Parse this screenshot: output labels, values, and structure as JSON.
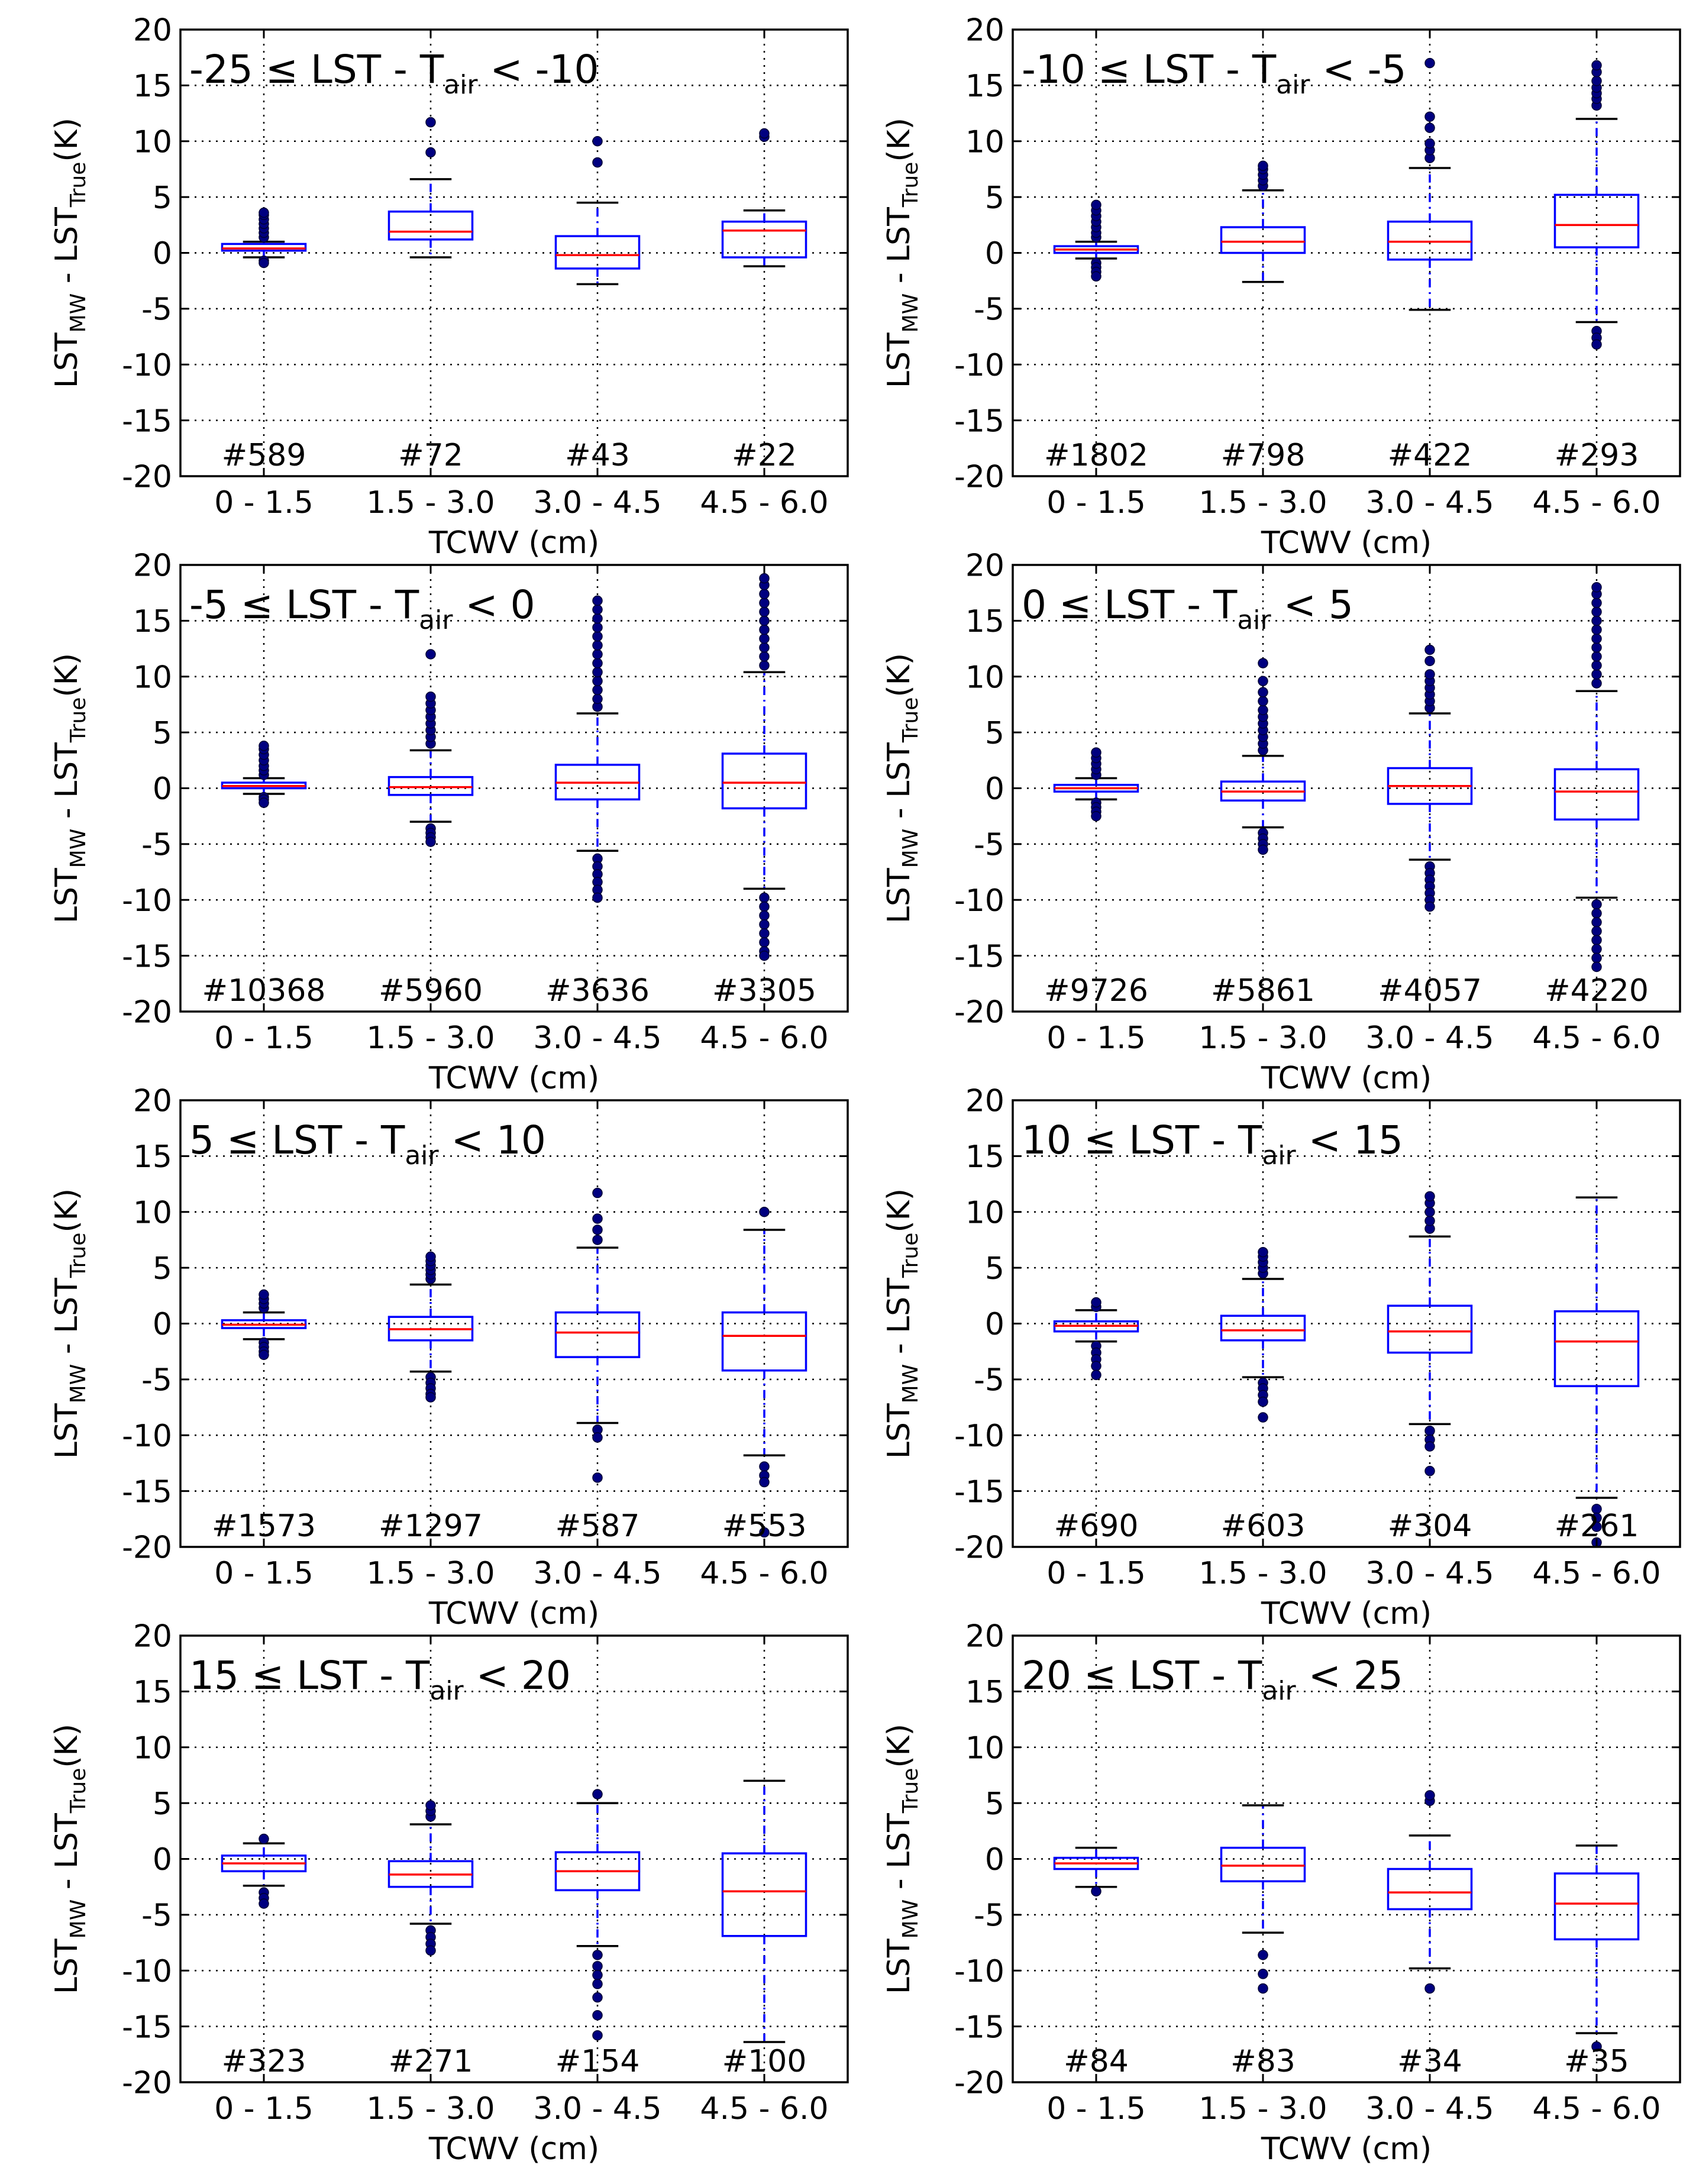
{
  "figure": {
    "xlabel": "TCWV (cm)",
    "ylabel_parts": {
      "a": "LST",
      "sub1": "MW",
      "mid": " - LST",
      "sub2": "True",
      "end": "(K)"
    },
    "colors": {
      "box": "#0000ff",
      "median": "#ff0000",
      "whisker": "#0000ff",
      "cap": "#000000",
      "flier": "#000080",
      "grid": "#000000"
    }
  },
  "chart_data": [
    {
      "type": "box",
      "title_parts": {
        "pre": "-25 ≤ LST - T",
        "sub": "air",
        "post": " < -10"
      },
      "categories": [
        "0 - 1.5",
        "1.5 - 3.0",
        "3.0 - 4.5",
        "4.5 - 6.0"
      ],
      "ylim": [
        -20,
        20
      ],
      "yticks": [
        -20,
        -15,
        -10,
        -5,
        0,
        5,
        10,
        15,
        20
      ],
      "counts": [
        "#589",
        "#72",
        "#43",
        "#22"
      ],
      "boxes": [
        {
          "q1": 0.2,
          "median": 0.4,
          "q3": 0.8,
          "wlo": -0.4,
          "whi": 1.0,
          "fliers": [
            1.4,
            1.8,
            2.2,
            2.6,
            3.0,
            3.4,
            3.6,
            -0.7,
            -0.9
          ]
        },
        {
          "q1": 1.2,
          "median": 1.9,
          "q3": 3.7,
          "wlo": -0.4,
          "whi": 6.6,
          "fliers": [
            9.0,
            11.7
          ]
        },
        {
          "q1": -1.4,
          "median": -0.2,
          "q3": 1.5,
          "wlo": -2.8,
          "whi": 4.5,
          "fliers": [
            8.1,
            10.0
          ]
        },
        {
          "q1": -0.4,
          "median": 2.0,
          "q3": 2.8,
          "wlo": -1.2,
          "whi": 3.8,
          "fliers": [
            10.4,
            10.7
          ]
        }
      ]
    },
    {
      "type": "box",
      "title_parts": {
        "pre": "-10 ≤ LST - T",
        "sub": "air",
        "post": " < -5"
      },
      "categories": [
        "0 - 1.5",
        "1.5 - 3.0",
        "3.0 - 4.5",
        "4.5 - 6.0"
      ],
      "ylim": [
        -20,
        20
      ],
      "yticks": [
        -20,
        -15,
        -10,
        -5,
        0,
        5,
        10,
        15,
        20
      ],
      "counts": [
        "#1802",
        "#798",
        "#422",
        "#293"
      ],
      "boxes": [
        {
          "q1": 0.0,
          "median": 0.3,
          "q3": 0.6,
          "wlo": -0.5,
          "whi": 1.0,
          "fliers": [
            1.4,
            1.8,
            2.3,
            2.8,
            3.3,
            3.8,
            4.3,
            -0.9,
            -1.3,
            -1.7,
            -2.1
          ]
        },
        {
          "q1": 0.0,
          "median": 1.0,
          "q3": 2.3,
          "wlo": -2.6,
          "whi": 5.6,
          "fliers": [
            6.0,
            6.5,
            7.0,
            7.5,
            7.8
          ]
        },
        {
          "q1": -0.6,
          "median": 1.0,
          "q3": 2.8,
          "wlo": -5.1,
          "whi": 7.6,
          "fliers": [
            8.5,
            9.2,
            9.8,
            11.2,
            12.2,
            17.0
          ]
        },
        {
          "q1": 0.5,
          "median": 2.5,
          "q3": 5.2,
          "wlo": -6.2,
          "whi": 12.0,
          "fliers": [
            13.2,
            13.8,
            14.3,
            14.8,
            15.4,
            16.2,
            16.8,
            -7.0,
            -7.6,
            -8.2
          ]
        }
      ]
    },
    {
      "type": "box",
      "title_parts": {
        "pre": "-5 ≤ LST - T",
        "sub": "air",
        "post": " < 0"
      },
      "categories": [
        "0 - 1.5",
        "1.5 - 3.0",
        "3.0 - 4.5",
        "4.5 - 6.0"
      ],
      "ylim": [
        -20,
        20
      ],
      "yticks": [
        -20,
        -15,
        -10,
        -5,
        0,
        5,
        10,
        15,
        20
      ],
      "counts": [
        "#10368",
        "#5960",
        "#3636",
        "#3305"
      ],
      "boxes": [
        {
          "q1": 0.0,
          "median": 0.2,
          "q3": 0.5,
          "wlo": -0.5,
          "whi": 0.9,
          "fliers": [
            1.2,
            1.6,
            2.0,
            2.5,
            3.0,
            3.5,
            3.8,
            -0.8,
            -1.0,
            -1.3
          ]
        },
        {
          "q1": -0.6,
          "median": 0.1,
          "q3": 1.0,
          "wlo": -3.0,
          "whi": 3.4,
          "fliers": [
            4.0,
            4.6,
            5.2,
            5.8,
            6.4,
            7.0,
            7.6,
            8.2,
            12.0,
            -3.6,
            -4.0,
            -4.4,
            -4.8
          ]
        },
        {
          "q1": -1.0,
          "median": 0.5,
          "q3": 2.1,
          "wlo": -5.6,
          "whi": 6.7,
          "fliers": [
            7.3,
            8.0,
            8.8,
            9.6,
            10.4,
            11.2,
            12.0,
            12.8,
            13.6,
            14.4,
            15.2,
            16.0,
            16.8,
            -6.3,
            -7.0,
            -7.7,
            -8.4,
            -9.1,
            -9.8
          ]
        },
        {
          "q1": -1.8,
          "median": 0.5,
          "q3": 3.1,
          "wlo": -9.0,
          "whi": 10.4,
          "fliers": [
            11.0,
            11.8,
            12.6,
            13.4,
            14.2,
            15.0,
            15.8,
            16.6,
            17.4,
            18.2,
            18.8,
            -9.8,
            -10.6,
            -11.4,
            -12.2,
            -13.0,
            -13.8,
            -14.6,
            -15.0
          ]
        }
      ]
    },
    {
      "type": "box",
      "title_parts": {
        "pre": "0 ≤ LST - T",
        "sub": "air",
        "post": " < 5"
      },
      "categories": [
        "0 - 1.5",
        "1.5 - 3.0",
        "3.0 - 4.5",
        "4.5 - 6.0"
      ],
      "ylim": [
        -20,
        20
      ],
      "yticks": [
        -20,
        -15,
        -10,
        -5,
        0,
        5,
        10,
        15,
        20
      ],
      "counts": [
        "#9726",
        "#5861",
        "#4057",
        "#4220"
      ],
      "boxes": [
        {
          "q1": -0.3,
          "median": 0.0,
          "q3": 0.3,
          "wlo": -1.0,
          "whi": 0.9,
          "fliers": [
            1.2,
            1.7,
            2.2,
            2.7,
            3.2,
            -1.3,
            -1.7,
            -2.1,
            -2.5
          ]
        },
        {
          "q1": -1.1,
          "median": -0.3,
          "q3": 0.6,
          "wlo": -3.5,
          "whi": 2.9,
          "fliers": [
            3.4,
            4.0,
            4.6,
            5.2,
            5.8,
            6.4,
            7.0,
            7.8,
            8.6,
            9.6,
            11.2,
            -4.0,
            -4.5,
            -5.0,
            -5.5
          ]
        },
        {
          "q1": -1.4,
          "median": 0.2,
          "q3": 1.8,
          "wlo": -6.4,
          "whi": 6.7,
          "fliers": [
            7.2,
            7.8,
            8.4,
            9.0,
            9.6,
            10.2,
            11.4,
            12.4,
            -7.0,
            -7.6,
            -8.2,
            -8.8,
            -9.4,
            -10.0,
            -10.6
          ]
        },
        {
          "q1": -2.8,
          "median": -0.3,
          "q3": 1.7,
          "wlo": -9.8,
          "whi": 8.7,
          "fliers": [
            9.4,
            10.2,
            11.0,
            11.8,
            12.6,
            13.4,
            14.2,
            15.0,
            15.8,
            16.6,
            17.4,
            18.0,
            -10.4,
            -11.2,
            -12.0,
            -12.8,
            -13.6,
            -14.4,
            -15.2,
            -16.0
          ]
        }
      ]
    },
    {
      "type": "box",
      "title_parts": {
        "pre": "5 ≤ LST - T",
        "sub": "air",
        "post": " < 10"
      },
      "categories": [
        "0 - 1.5",
        "1.5 - 3.0",
        "3.0 - 4.5",
        "4.5 - 6.0"
      ],
      "ylim": [
        -20,
        20
      ],
      "yticks": [
        -20,
        -15,
        -10,
        -5,
        0,
        5,
        10,
        15,
        20
      ],
      "counts": [
        "#1573",
        "#1297",
        "#587",
        "#553"
      ],
      "boxes": [
        {
          "q1": -0.4,
          "median": -0.1,
          "q3": 0.3,
          "wlo": -1.4,
          "whi": 1.0,
          "fliers": [
            1.4,
            1.8,
            2.2,
            2.6,
            -1.7,
            -2.1,
            -2.5,
            -2.8
          ]
        },
        {
          "q1": -1.5,
          "median": -0.5,
          "q3": 0.6,
          "wlo": -4.3,
          "whi": 3.5,
          "fliers": [
            4.0,
            4.4,
            4.8,
            5.2,
            5.6,
            6.0,
            -4.8,
            -5.3,
            -5.8,
            -6.3,
            -6.6
          ]
        },
        {
          "q1": -3.0,
          "median": -0.8,
          "q3": 1.0,
          "wlo": -8.9,
          "whi": 6.8,
          "fliers": [
            7.5,
            8.4,
            9.4,
            11.7,
            -9.5,
            -10.2,
            -13.8
          ]
        },
        {
          "q1": -4.2,
          "median": -1.1,
          "q3": 1.0,
          "wlo": -11.8,
          "whi": 8.4,
          "fliers": [
            10.0,
            -12.8,
            -13.6,
            -14.2,
            -18.7
          ]
        }
      ]
    },
    {
      "type": "box",
      "title_parts": {
        "pre": "10 ≤ LST - T",
        "sub": "air",
        "post": " < 15"
      },
      "categories": [
        "0 - 1.5",
        "1.5 - 3.0",
        "3.0 - 4.5",
        "4.5 - 6.0"
      ],
      "ylim": [
        -20,
        20
      ],
      "yticks": [
        -20,
        -15,
        -10,
        -5,
        0,
        5,
        10,
        15,
        20
      ],
      "counts": [
        "#690",
        "#603",
        "#304",
        "#261"
      ],
      "boxes": [
        {
          "q1": -0.7,
          "median": -0.2,
          "q3": 0.2,
          "wlo": -1.6,
          "whi": 1.2,
          "fliers": [
            1.5,
            1.9,
            -2.0,
            -2.6,
            -3.2,
            -3.8,
            -4.6
          ]
        },
        {
          "q1": -1.5,
          "median": -0.6,
          "q3": 0.7,
          "wlo": -4.8,
          "whi": 4.0,
          "fliers": [
            4.5,
            5.0,
            5.5,
            6.0,
            6.4,
            -5.3,
            -5.8,
            -6.4,
            -7.0,
            -8.4
          ]
        },
        {
          "q1": -2.6,
          "median": -0.7,
          "q3": 1.6,
          "wlo": -9.0,
          "whi": 7.8,
          "fliers": [
            8.5,
            9.2,
            10.0,
            10.8,
            11.4,
            -9.6,
            -10.4,
            -11.0,
            -13.2
          ]
        },
        {
          "q1": -5.6,
          "median": -1.6,
          "q3": 1.1,
          "wlo": -15.6,
          "whi": 11.3,
          "fliers": [
            -16.6,
            -17.4,
            -18.2,
            -19.6
          ]
        }
      ]
    },
    {
      "type": "box",
      "title_parts": {
        "pre": "15 ≤ LST - T",
        "sub": "air",
        "post": " < 20"
      },
      "categories": [
        "0 - 1.5",
        "1.5 - 3.0",
        "3.0 - 4.5",
        "4.5 - 6.0"
      ],
      "ylim": [
        -20,
        20
      ],
      "yticks": [
        -20,
        -15,
        -10,
        -5,
        0,
        5,
        10,
        15,
        20
      ],
      "counts": [
        "#323",
        "#271",
        "#154",
        "#100"
      ],
      "boxes": [
        {
          "q1": -1.1,
          "median": -0.4,
          "q3": 0.3,
          "wlo": -2.4,
          "whi": 1.4,
          "fliers": [
            1.8,
            -3.0,
            -3.5,
            -4.0
          ]
        },
        {
          "q1": -2.5,
          "median": -1.4,
          "q3": -0.2,
          "wlo": -5.8,
          "whi": 3.1,
          "fliers": [
            3.8,
            4.3,
            4.8,
            -6.4,
            -7.0,
            -7.6,
            -8.2
          ]
        },
        {
          "q1": -2.8,
          "median": -1.1,
          "q3": 0.6,
          "wlo": -7.8,
          "whi": 5.0,
          "fliers": [
            5.8,
            -8.6,
            -9.6,
            -10.4,
            -11.2,
            -12.4,
            -14.0,
            -15.8
          ]
        },
        {
          "q1": -6.9,
          "median": -2.9,
          "q3": 0.5,
          "wlo": -16.4,
          "whi": 7.0,
          "fliers": []
        }
      ]
    },
    {
      "type": "box",
      "title_parts": {
        "pre": "20 ≤ LST - T",
        "sub": "air",
        "post": " < 25"
      },
      "categories": [
        "0 - 1.5",
        "1.5 - 3.0",
        "3.0 - 4.5",
        "4.5 - 6.0"
      ],
      "ylim": [
        -20,
        20
      ],
      "yticks": [
        -20,
        -15,
        -10,
        -5,
        0,
        5,
        10,
        15,
        20
      ],
      "counts": [
        "#84",
        "#83",
        "#34",
        "#35"
      ],
      "boxes": [
        {
          "q1": -0.9,
          "median": -0.4,
          "q3": 0.1,
          "wlo": -2.5,
          "whi": 1.0,
          "fliers": [
            -2.9
          ]
        },
        {
          "q1": -2.0,
          "median": -0.6,
          "q3": 1.0,
          "wlo": -6.6,
          "whi": 4.8,
          "fliers": [
            -8.6,
            -10.3,
            -11.6
          ]
        },
        {
          "q1": -4.5,
          "median": -3.0,
          "q3": -0.9,
          "wlo": -9.8,
          "whi": 2.1,
          "fliers": [
            5.2,
            5.7,
            -11.6
          ]
        },
        {
          "q1": -7.2,
          "median": -4.0,
          "q3": -1.3,
          "wlo": -15.6,
          "whi": 1.2,
          "fliers": [
            -16.8
          ]
        }
      ]
    }
  ]
}
